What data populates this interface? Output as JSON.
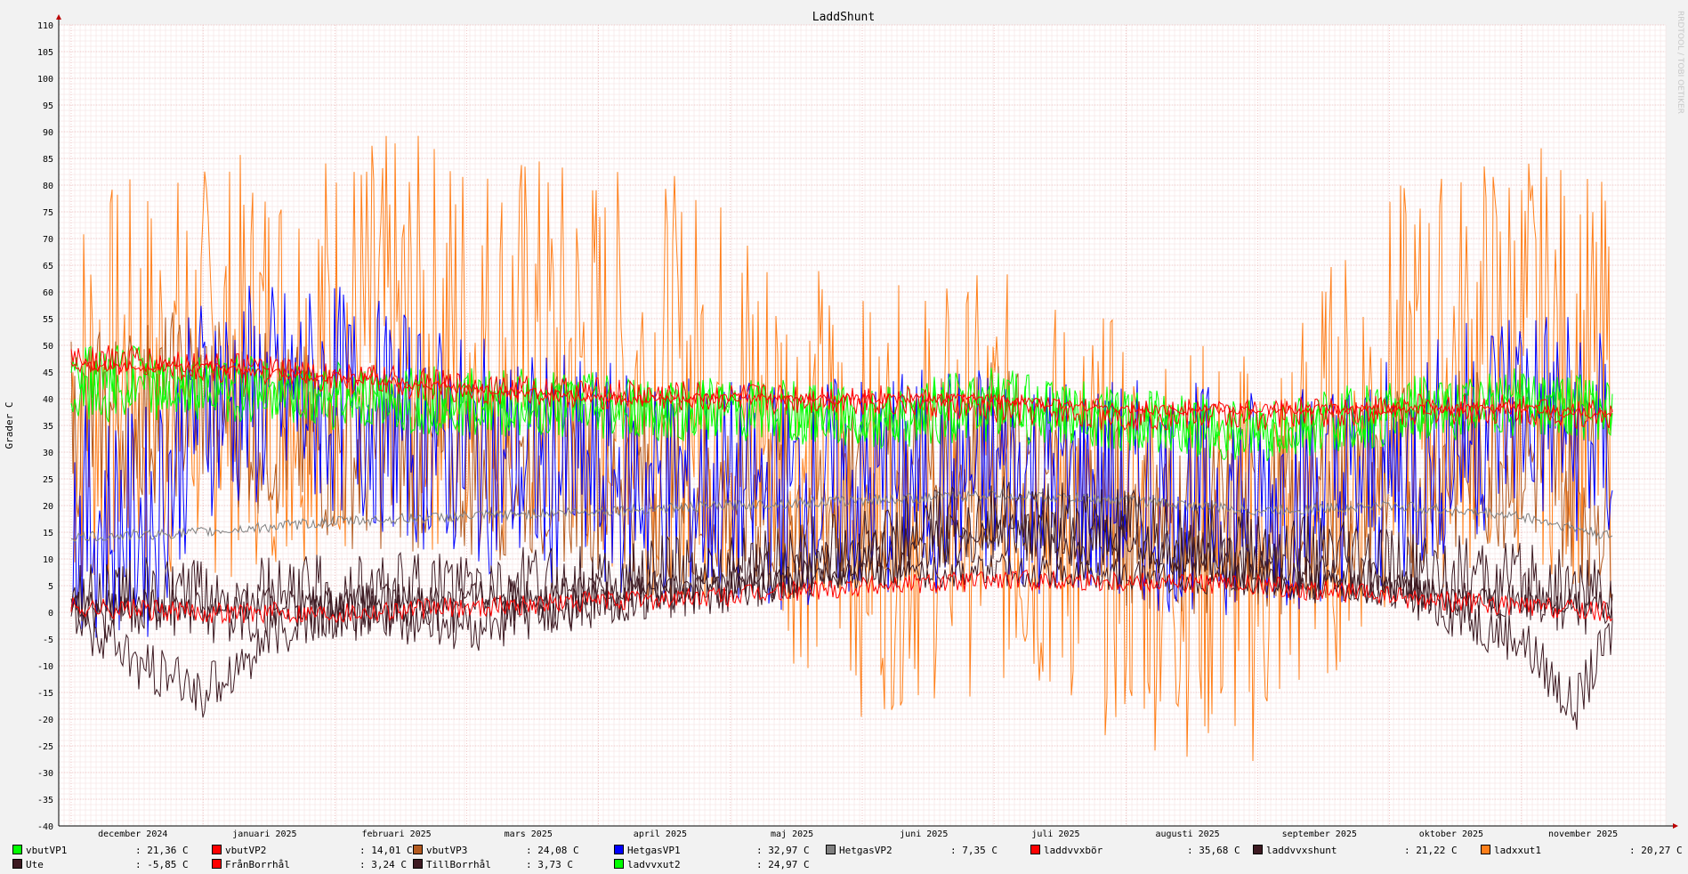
{
  "watermark": "RRDTOOL / TOBI OETIKER",
  "chart_data": {
    "type": "line",
    "title": "LaddShunt",
    "ylabel": "Grader C",
    "xlabel": "",
    "ylim": [
      -40,
      110
    ],
    "ytick_step": 5,
    "grid": true,
    "legend_placement": "bottom",
    "x_ticks": [
      "december 2024",
      "januari 2025",
      "februari 2025",
      "mars 2025",
      "april 2025",
      "maj 2025",
      "juni 2025",
      "juli 2025",
      "augusti 2025",
      "september 2025",
      "oktober 2025",
      "november 2025"
    ],
    "series": [
      {
        "name": "vbutVP1",
        "color": "#00ff00",
        "value": "21,36 C",
        "segments": [
          [
            0,
            45
          ],
          [
            1,
            43
          ],
          [
            2,
            41
          ],
          [
            3,
            40
          ],
          [
            4,
            39
          ],
          [
            5,
            38
          ],
          [
            6,
            36
          ],
          [
            7,
            38
          ],
          [
            8,
            36
          ],
          [
            9,
            34
          ],
          [
            10,
            37
          ],
          [
            11,
            39
          ],
          [
            11.7,
            38
          ]
        ]
      },
      {
        "name": "vbutVP2",
        "color": "#ff0000",
        "value": "14,01 C",
        "segments": [
          [
            0,
            48
          ],
          [
            1,
            46
          ],
          [
            2,
            44
          ],
          [
            3,
            42
          ],
          [
            4,
            41
          ],
          [
            5,
            40
          ],
          [
            6,
            40
          ],
          [
            7,
            38
          ],
          [
            8,
            37
          ],
          [
            9,
            37
          ],
          [
            10,
            38
          ],
          [
            11,
            38
          ],
          [
            11.7,
            37
          ]
        ]
      },
      {
        "name": "vbutVP3",
        "color": "#b35a1f",
        "value": "24,08 C",
        "segments": [
          [
            0,
            35
          ],
          [
            1,
            40
          ],
          [
            2,
            30
          ],
          [
            3,
            28
          ],
          [
            4,
            26
          ],
          [
            5,
            22
          ],
          [
            6,
            20
          ],
          [
            7,
            30
          ],
          [
            8,
            18
          ],
          [
            9,
            16
          ],
          [
            10,
            25
          ],
          [
            11,
            30
          ],
          [
            11.7,
            20
          ]
        ]
      },
      {
        "name": "HetgasVP1",
        "color": "#0000ff",
        "value": "32,97 C",
        "segments": [
          [
            0,
            17
          ],
          [
            0.6,
            17
          ],
          [
            1,
            40
          ],
          [
            2,
            40
          ],
          [
            3,
            30
          ],
          [
            4,
            25
          ],
          [
            5,
            22
          ],
          [
            6,
            23
          ],
          [
            7,
            26
          ],
          [
            8,
            22
          ],
          [
            9,
            21
          ],
          [
            10,
            25
          ],
          [
            11,
            40
          ],
          [
            11.7,
            30
          ]
        ]
      },
      {
        "name": "HetgasVP2",
        "color": "#808080",
        "value": "7,35 C",
        "segments": [
          [
            0,
            14
          ],
          [
            1,
            15
          ],
          [
            2,
            17
          ],
          [
            3,
            18
          ],
          [
            4,
            19
          ],
          [
            5,
            20
          ],
          [
            6,
            21
          ],
          [
            7,
            22
          ],
          [
            8,
            21
          ],
          [
            9,
            19
          ],
          [
            10,
            20
          ],
          [
            11,
            18
          ],
          [
            11.7,
            14
          ]
        ]
      },
      {
        "name": "laddvvxbör",
        "color": "#ff0000",
        "value": "35,68 C",
        "segments": [
          [
            0,
            46
          ],
          [
            1,
            46
          ],
          [
            2,
            44
          ],
          [
            3,
            42
          ],
          [
            4,
            40
          ],
          [
            5,
            40
          ],
          [
            6,
            40
          ],
          [
            7,
            40
          ],
          [
            8,
            38
          ],
          [
            9,
            38
          ],
          [
            10,
            38
          ],
          [
            11,
            38
          ],
          [
            11.7,
            37
          ]
        ]
      },
      {
        "name": "laddvvxshunt",
        "color": "#3d1a22",
        "value": "21,22 C",
        "segments": [
          [
            0,
            3
          ],
          [
            1,
            2
          ],
          [
            2,
            3
          ],
          [
            3,
            4
          ],
          [
            4,
            5
          ],
          [
            5,
            8
          ],
          [
            6,
            12
          ],
          [
            7,
            18
          ],
          [
            8,
            15
          ],
          [
            9,
            12
          ],
          [
            10,
            8
          ],
          [
            11,
            5
          ],
          [
            11.7,
            3
          ]
        ]
      },
      {
        "name": "ladxxut1",
        "color": "#ff7f1a",
        "value": "20,27 C",
        "segments": [
          [
            0,
            40
          ],
          [
            1,
            45
          ],
          [
            2,
            50
          ],
          [
            3,
            50
          ],
          [
            4,
            45
          ],
          [
            5,
            40
          ],
          [
            6,
            20
          ],
          [
            7,
            25
          ],
          [
            8,
            15
          ],
          [
            9,
            10
          ],
          [
            10,
            40
          ],
          [
            11,
            50
          ],
          [
            11.7,
            40
          ]
        ]
      },
      {
        "name": "Ute",
        "color": "#3d1a22",
        "value": "-5,85 C",
        "segments": [
          [
            0,
            0
          ],
          [
            0.5,
            -10
          ],
          [
            1,
            -15
          ],
          [
            1.5,
            -5
          ],
          [
            2,
            0
          ],
          [
            3,
            -3
          ],
          [
            4,
            2
          ],
          [
            5,
            5
          ],
          [
            6,
            10
          ],
          [
            7,
            15
          ],
          [
            8,
            13
          ],
          [
            9,
            8
          ],
          [
            10,
            5
          ],
          [
            11,
            -5
          ],
          [
            11.4,
            -18
          ],
          [
            11.7,
            -3
          ]
        ]
      },
      {
        "name": "FrånBorrhål",
        "color": "#ff0000",
        "value": "3,24 C",
        "segments": [
          [
            0,
            1
          ],
          [
            1,
            0
          ],
          [
            2,
            0
          ],
          [
            3,
            1
          ],
          [
            4,
            2
          ],
          [
            5,
            3
          ],
          [
            6,
            5
          ],
          [
            7,
            6
          ],
          [
            8,
            6
          ],
          [
            9,
            5
          ],
          [
            10,
            3
          ],
          [
            11,
            1
          ],
          [
            11.7,
            0
          ]
        ]
      },
      {
        "name": "TillBorrhål",
        "color": "#3d1a22",
        "value": "3,73 C",
        "segments": [
          [
            0,
            2
          ],
          [
            1,
            1
          ],
          [
            2,
            2
          ],
          [
            3,
            3
          ],
          [
            4,
            4
          ],
          [
            5,
            5
          ],
          [
            6,
            7
          ],
          [
            7,
            8
          ],
          [
            8,
            7
          ],
          [
            9,
            6
          ],
          [
            10,
            4
          ],
          [
            11,
            2
          ],
          [
            11.7,
            1
          ]
        ]
      },
      {
        "name": "ladvvxut2",
        "color": "#00ff00",
        "value": "24,97 C",
        "segments": [
          [
            0,
            40
          ],
          [
            1,
            42
          ],
          [
            2,
            40
          ],
          [
            3,
            39
          ],
          [
            4,
            38
          ],
          [
            5,
            38
          ],
          [
            6,
            37
          ],
          [
            7,
            40
          ],
          [
            8,
            36
          ],
          [
            9,
            34
          ],
          [
            10,
            38
          ],
          [
            11,
            40
          ],
          [
            11.7,
            38
          ]
        ]
      }
    ]
  }
}
